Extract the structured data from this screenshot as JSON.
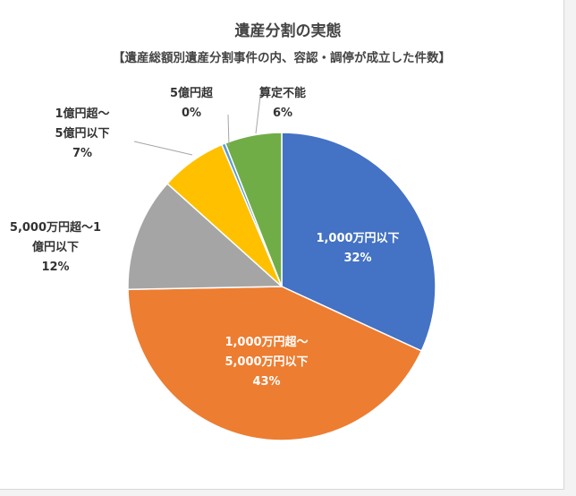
{
  "chart_data": {
    "type": "pie",
    "title": "遺産分割の実態",
    "subtitle": "【遺産総額別遺産分割事件の内、容認・調停が成立した件数】",
    "slices": [
      {
        "label_lines": [
          "1,000万円以下"
        ],
        "value": 32,
        "pct_text": "32%",
        "color": "#4472c4"
      },
      {
        "label_lines": [
          "1,000万円超～",
          "5,000万円以下"
        ],
        "value": 43,
        "pct_text": "43%",
        "color": "#ed7d31"
      },
      {
        "label_lines": [
          "5,000万円超～1",
          "億円以下"
        ],
        "value": 12,
        "pct_text": "12%",
        "color": "#a5a5a5"
      },
      {
        "label_lines": [
          "1億円超～",
          "5億円以下"
        ],
        "value": 7,
        "pct_text": "7%",
        "color": "#ffc000"
      },
      {
        "label_lines": [
          "5億円超"
        ],
        "value": 0.4,
        "pct_text": "0%",
        "color": "#5b9bd5"
      },
      {
        "label_lines": [
          "算定不能"
        ],
        "value": 6,
        "pct_text": "6%",
        "color": "#70ad47"
      }
    ]
  }
}
